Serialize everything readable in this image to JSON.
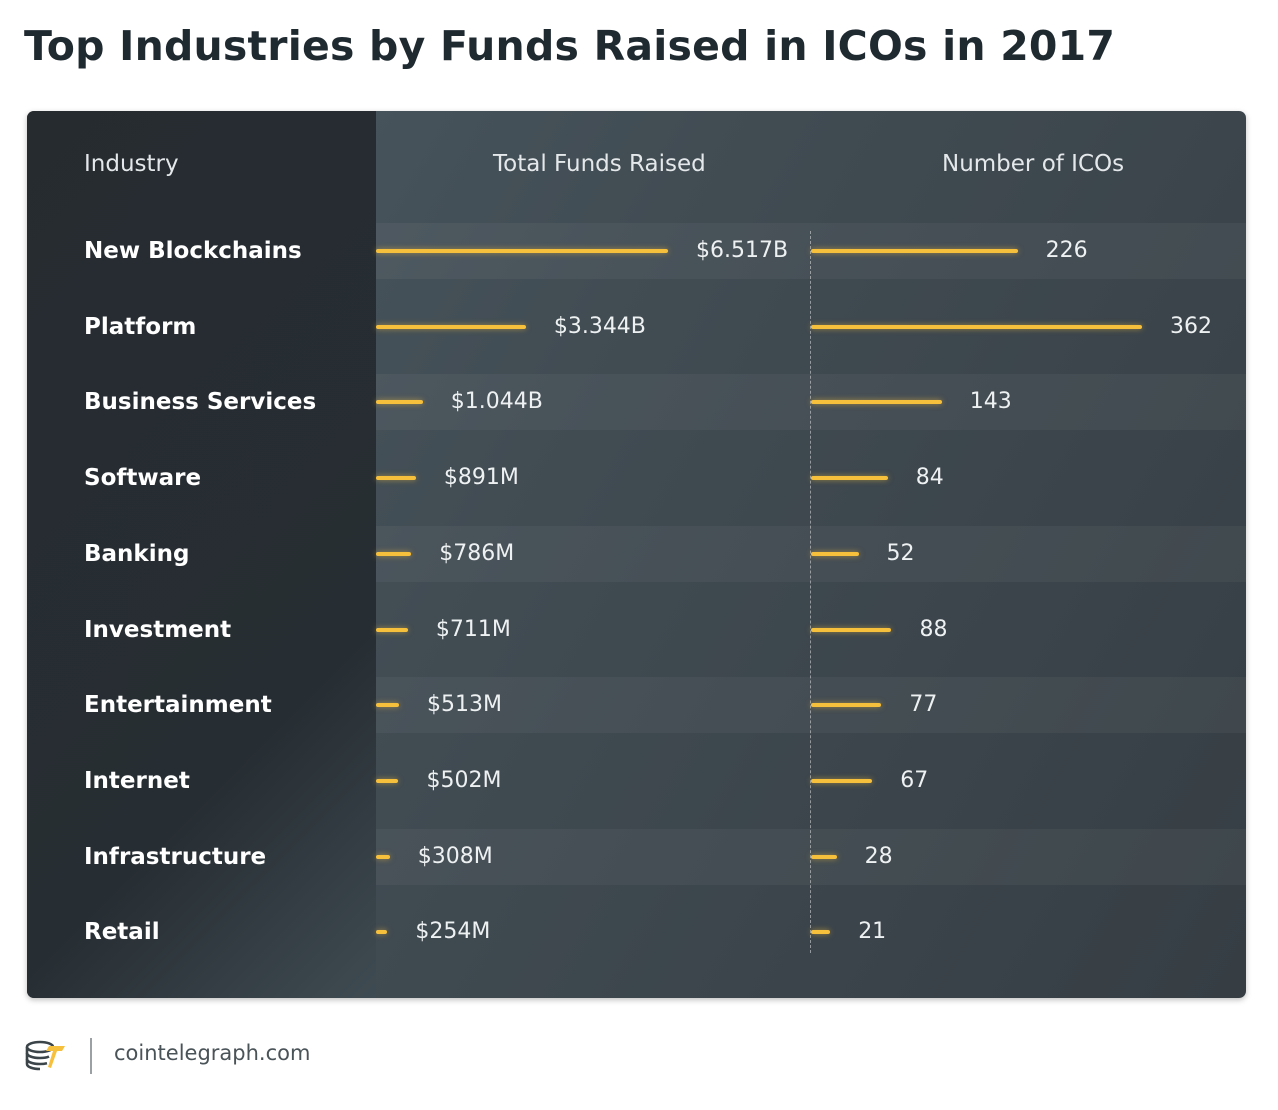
{
  "title": "Top Industries by Funds Raised in ICOs in 2017",
  "footer": {
    "domain": "cointelegraph.com",
    "logo_icon": "cointelegraph-logo-icon"
  },
  "colors": {
    "bar": "#f6bf3c",
    "panel": "#414c53",
    "sidebar": "#272e33"
  },
  "chart_data": {
    "type": "bar",
    "orientation": "horizontal",
    "headers": {
      "industry": "Industry",
      "funds": "Total Funds Raised",
      "icos": "Number of ICOs"
    },
    "categories": [
      "New Blockchains",
      "Platform",
      "Business Services",
      "Software",
      "Banking",
      "Investment",
      "Entertainment",
      "Internet",
      "Infrastructure",
      "Retail"
    ],
    "series": [
      {
        "name": "Total Funds Raised",
        "unit": "USD millions",
        "values": [
          6517,
          3344,
          1044,
          891,
          786,
          711,
          513,
          502,
          308,
          254
        ],
        "labels": [
          "$6.517B",
          "$3.344B",
          "$1.044B",
          "$891M",
          "$786M",
          "$711M",
          "$513M",
          "$502M",
          "$308M",
          "$254M"
        ]
      },
      {
        "name": "Number of ICOs",
        "unit": "count",
        "values": [
          226,
          362,
          143,
          84,
          52,
          88,
          77,
          67,
          28,
          21
        ],
        "labels": [
          "226",
          "362",
          "143",
          "84",
          "52",
          "88",
          "77",
          "67",
          "28",
          "21"
        ]
      }
    ]
  }
}
